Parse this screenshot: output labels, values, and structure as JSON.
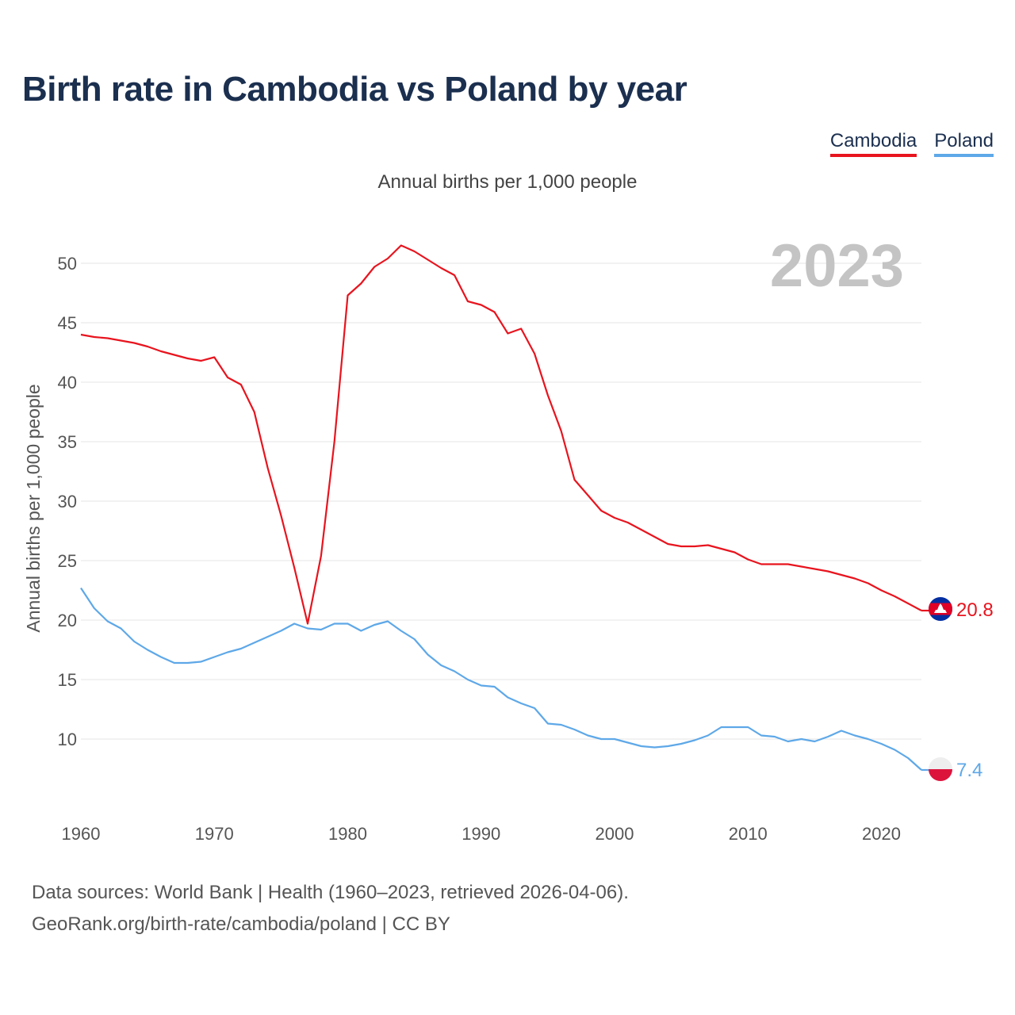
{
  "title": "Birth rate in Cambodia vs Poland by year",
  "subtitle": "Annual births per 1,000 people",
  "legend": [
    {
      "label": "Cambodia",
      "color": "#e8141e"
    },
    {
      "label": "Poland",
      "color": "#5ea8e8"
    }
  ],
  "footer": {
    "line1": "Data sources: World Bank | Health (1960–2023, retrieved 2026-04-06).",
    "line2": "GeoRank.org/birth-rate/cambodia/poland | CC BY"
  },
  "chart_data": {
    "type": "line",
    "title": "Birth rate in Cambodia vs Poland by year",
    "ylabel": "Annual births per 1,000 people",
    "xlabel": "",
    "year_watermark": "2023",
    "xlim": [
      1960,
      2023
    ],
    "ylim": [
      5,
      52
    ],
    "yticks": [
      10,
      15,
      20,
      25,
      30,
      35,
      40,
      45,
      50
    ],
    "xticks": [
      1960,
      1970,
      1980,
      1990,
      2000,
      2010,
      2020
    ],
    "grid": true,
    "x": [
      1960,
      1961,
      1962,
      1963,
      1964,
      1965,
      1966,
      1967,
      1968,
      1969,
      1970,
      1971,
      1972,
      1973,
      1974,
      1975,
      1976,
      1977,
      1978,
      1979,
      1980,
      1981,
      1982,
      1983,
      1984,
      1985,
      1986,
      1987,
      1988,
      1989,
      1990,
      1991,
      1992,
      1993,
      1994,
      1995,
      1996,
      1997,
      1998,
      1999,
      2000,
      2001,
      2002,
      2003,
      2004,
      2005,
      2006,
      2007,
      2008,
      2009,
      2010,
      2011,
      2012,
      2013,
      2014,
      2015,
      2016,
      2017,
      2018,
      2019,
      2020,
      2021,
      2022,
      2023
    ],
    "series": [
      {
        "name": "Cambodia",
        "color": "#e8141e",
        "end_label": "20.8",
        "values": [
          44.0,
          43.8,
          43.7,
          43.5,
          43.3,
          43.0,
          42.6,
          42.3,
          42.0,
          41.8,
          42.1,
          40.4,
          39.8,
          37.5,
          32.8,
          28.8,
          24.4,
          19.7,
          25.4,
          35.0,
          47.3,
          48.3,
          49.7,
          50.4,
          51.5,
          51.0,
          50.3,
          49.6,
          49.0,
          46.8,
          46.5,
          45.9,
          44.1,
          44.5,
          42.4,
          38.9,
          35.9,
          31.8,
          30.5,
          29.2,
          28.6,
          28.2,
          27.6,
          27.0,
          26.4,
          26.2,
          26.2,
          26.3,
          26.0,
          25.7,
          25.1,
          24.7,
          24.7,
          24.7,
          24.5,
          24.3,
          24.1,
          23.8,
          23.5,
          23.1,
          22.5,
          22.0,
          21.4,
          20.8
        ]
      },
      {
        "name": "Poland",
        "color": "#5ea8e8",
        "end_label": "7.4",
        "values": [
          22.7,
          21.0,
          19.9,
          19.3,
          18.2,
          17.5,
          16.9,
          16.4,
          16.4,
          16.5,
          16.9,
          17.3,
          17.6,
          18.1,
          18.6,
          19.1,
          19.7,
          19.3,
          19.2,
          19.7,
          19.7,
          19.1,
          19.6,
          19.9,
          19.1,
          18.4,
          17.1,
          16.2,
          15.7,
          15.0,
          14.5,
          14.4,
          13.5,
          13.0,
          12.6,
          11.3,
          11.2,
          10.8,
          10.3,
          10.0,
          10.0,
          9.7,
          9.4,
          9.3,
          9.4,
          9.6,
          9.9,
          10.3,
          11.0,
          11.0,
          11.0,
          10.3,
          10.2,
          9.8,
          10.0,
          9.8,
          10.2,
          10.7,
          10.3,
          10.0,
          9.6,
          9.1,
          8.4,
          7.4
        ]
      }
    ]
  }
}
